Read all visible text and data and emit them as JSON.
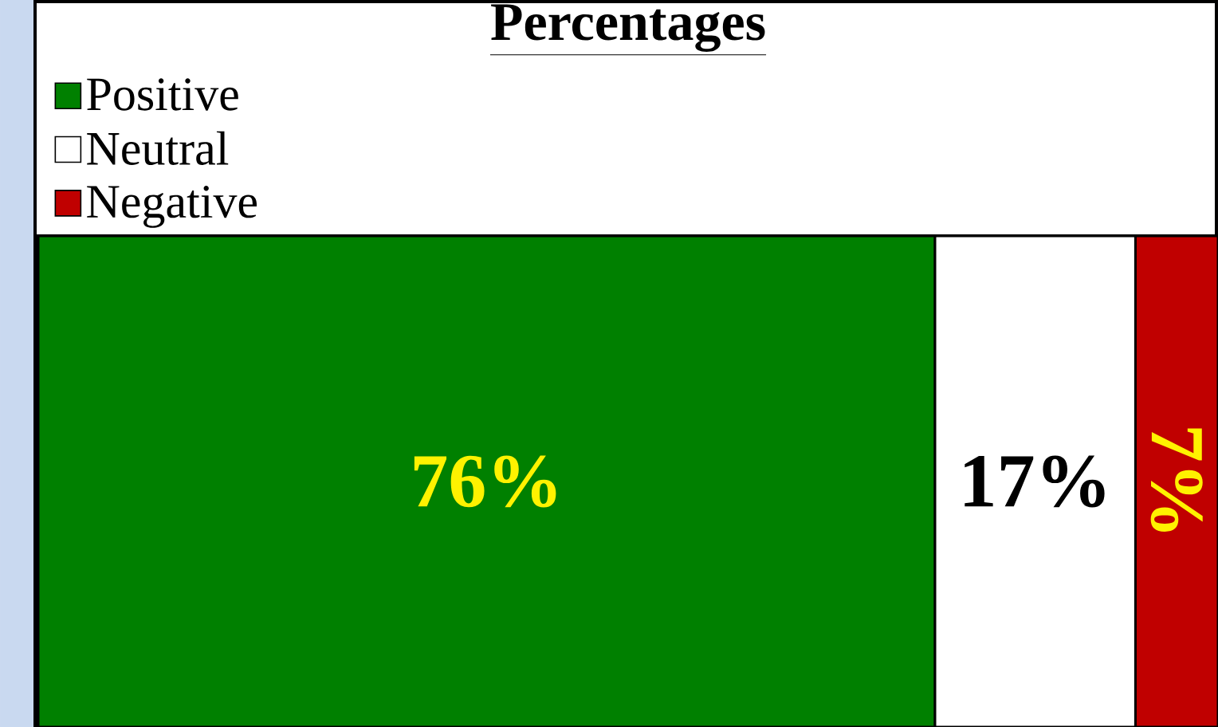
{
  "chart_data": {
    "type": "bar",
    "orientation": "horizontal",
    "stacked": true,
    "title": "Percentages",
    "categories": [
      null
    ],
    "series": [
      {
        "name": "Positive",
        "color": "#008000",
        "values": [
          76
        ],
        "value_labels": [
          "76%"
        ]
      },
      {
        "name": "Neutral",
        "color": "#ffffff",
        "values": [
          17
        ],
        "value_labels": [
          "17%"
        ]
      },
      {
        "name": "Negative",
        "color": "#c00000",
        "values": [
          7
        ],
        "value_labels": [
          "7%"
        ]
      }
    ],
    "tick_labels": false,
    "legend": "top left"
  }
}
